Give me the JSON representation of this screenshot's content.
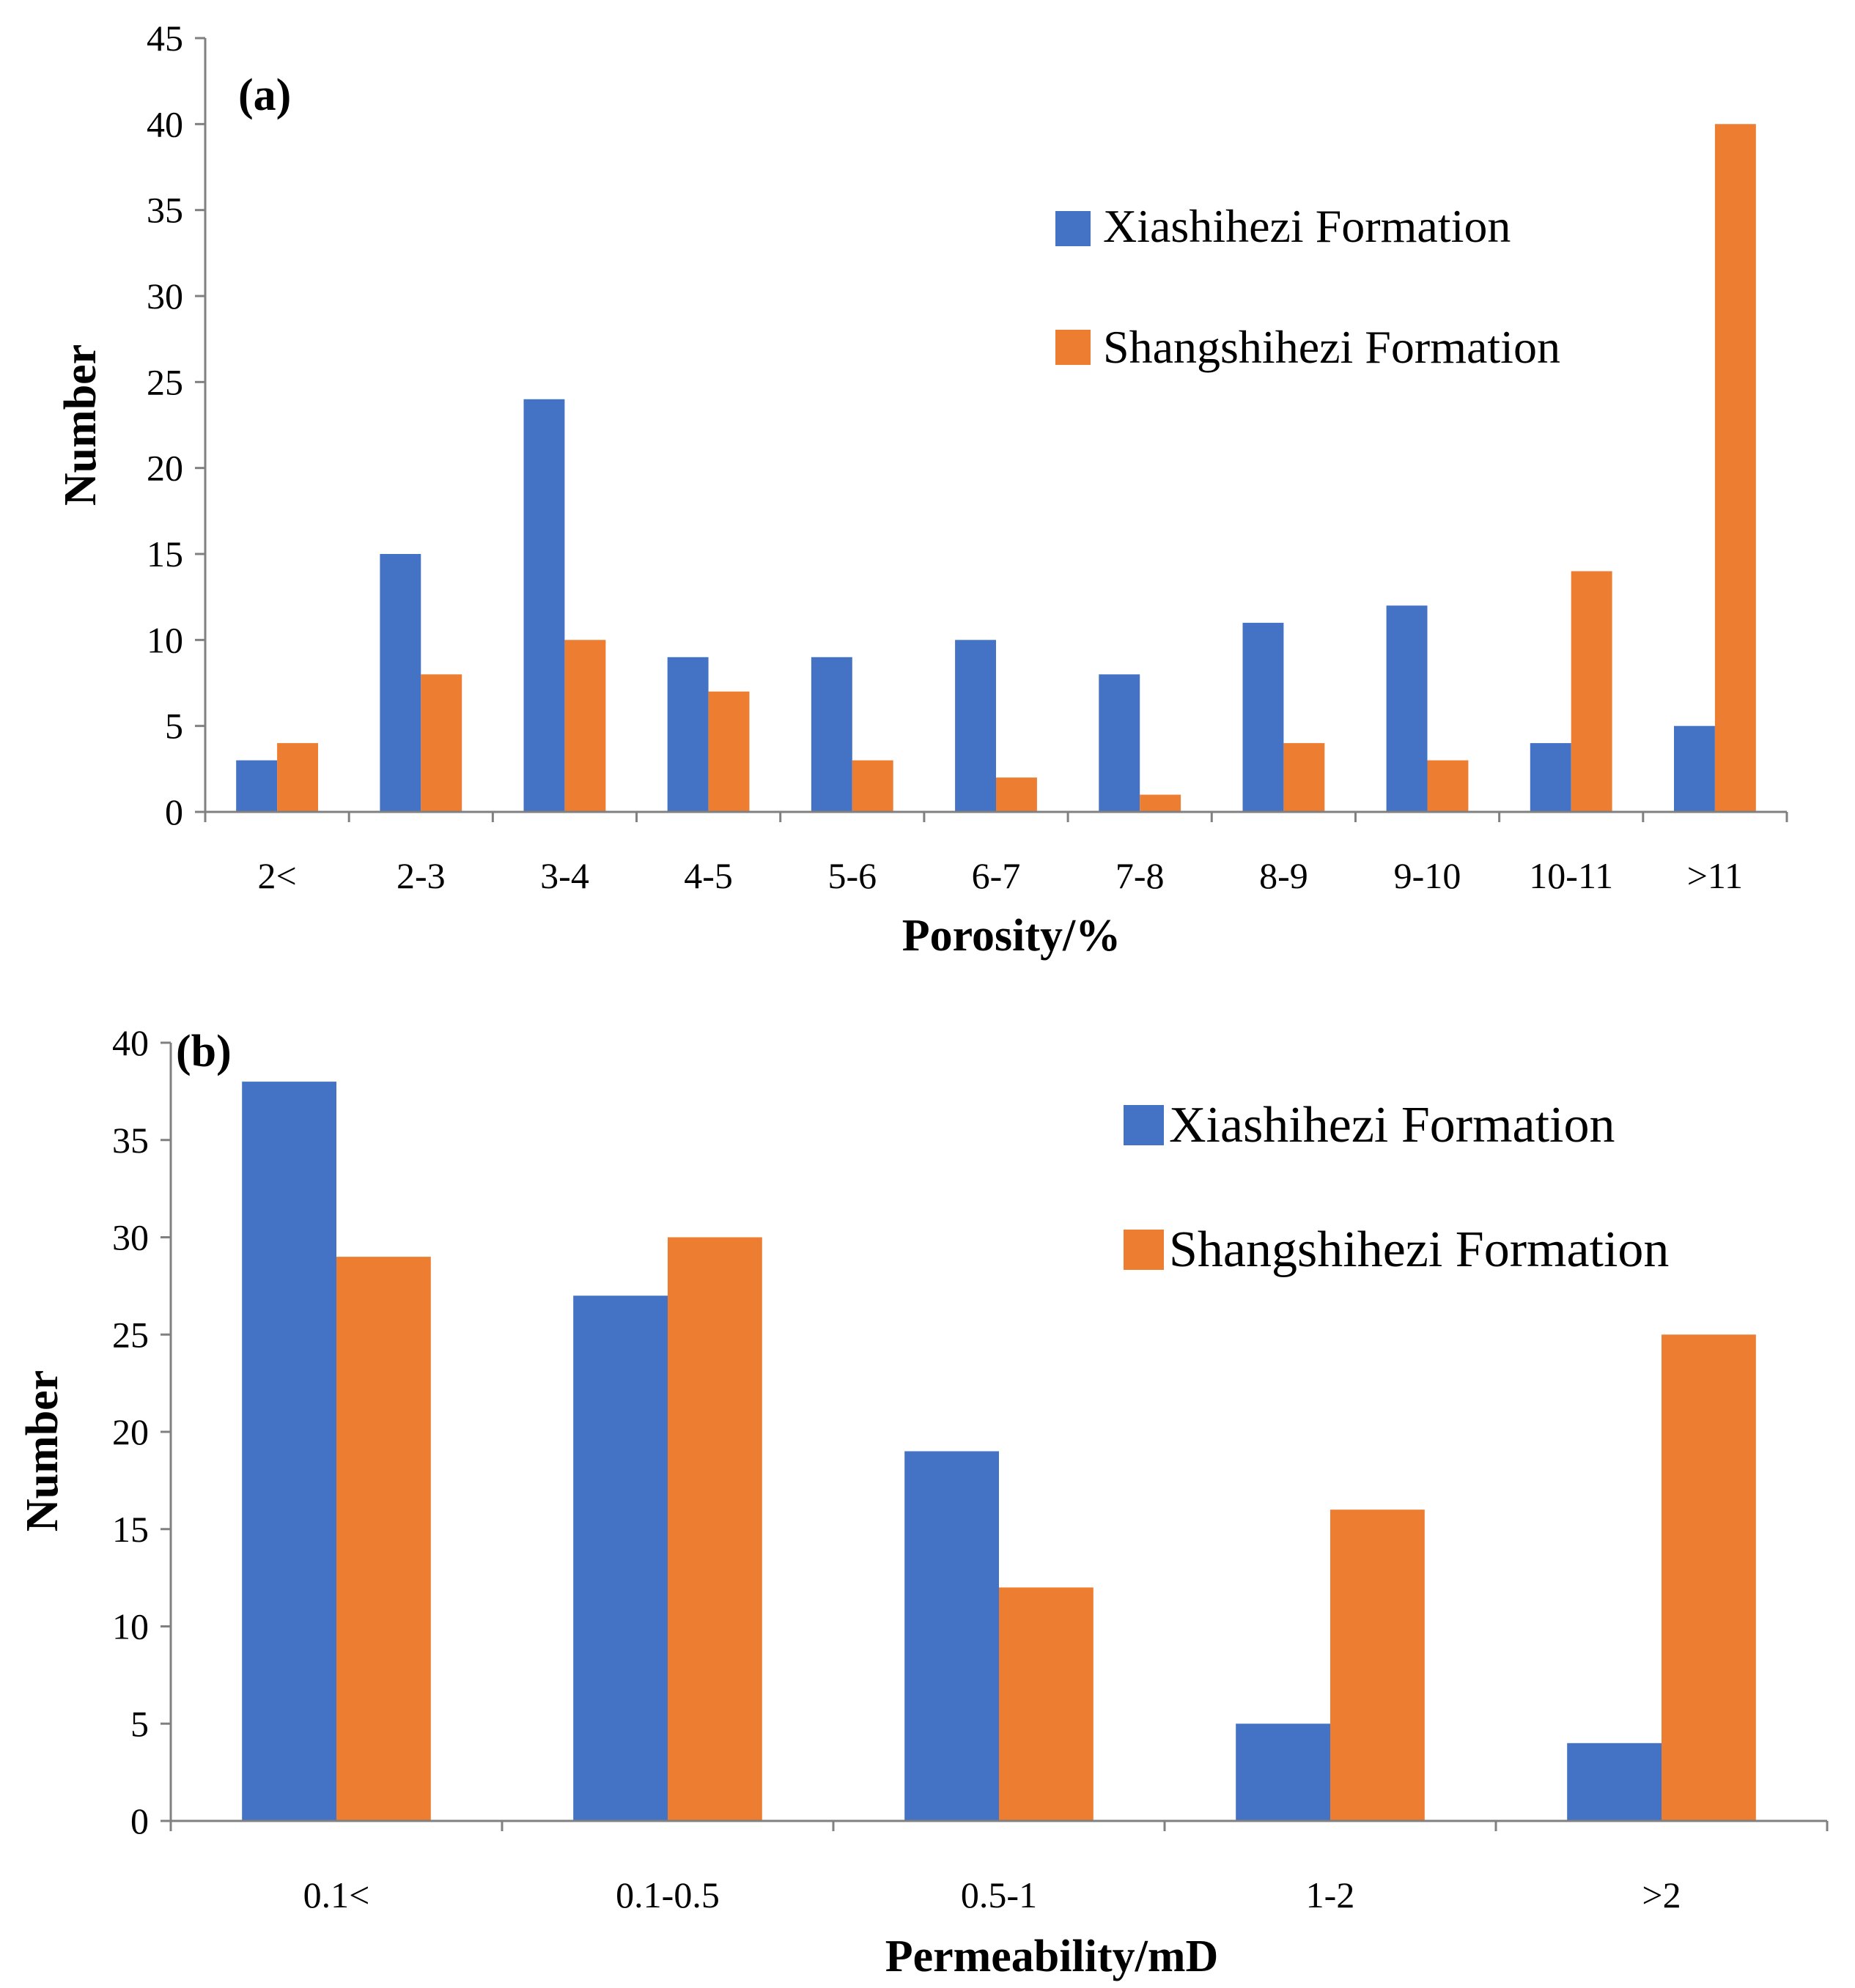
{
  "colors": {
    "xiashihezi": "#4472C4",
    "shangshihezi": "#ED7D31",
    "axis": "#808080"
  },
  "chart_data": [
    {
      "type": "bar",
      "panel_label": "(a)",
      "title": "",
      "xlabel": "Porosity/%",
      "ylabel": "Number",
      "categories": [
        "2<",
        "2-3",
        "3-4",
        "4-5",
        "5-6",
        "6-7",
        "7-8",
        "8-9",
        "9-10",
        "10-11",
        ">11"
      ],
      "series": [
        {
          "name": "Xiashihezi Formation",
          "color": "#4472C4",
          "values": [
            3,
            15,
            24,
            9,
            9,
            10,
            8,
            11,
            12,
            4,
            5
          ]
        },
        {
          "name": "Shangshihezi Formation",
          "color": "#ED7D31",
          "values": [
            4,
            8,
            10,
            7,
            3,
            2,
            1,
            4,
            3,
            14,
            40
          ]
        }
      ],
      "ylim": [
        0,
        45
      ],
      "yticks": [
        0,
        5,
        10,
        15,
        20,
        25,
        30,
        35,
        40,
        45
      ],
      "grid": false,
      "legend": "top-right"
    },
    {
      "type": "bar",
      "panel_label": "(b)",
      "title": "",
      "xlabel": "Permeability/mD",
      "ylabel": "Number",
      "categories": [
        "0.1<",
        "0.1-0.5",
        "0.5-1",
        "1-2",
        ">2"
      ],
      "series": [
        {
          "name": "Xiashihezi Formation",
          "color": "#4472C4",
          "values": [
            38,
            27,
            19,
            5,
            4
          ]
        },
        {
          "name": "Shangshihezi Formation",
          "color": "#ED7D31",
          "values": [
            29,
            30,
            12,
            16,
            25
          ]
        }
      ],
      "ylim": [
        0,
        40
      ],
      "yticks": [
        0,
        5,
        10,
        15,
        20,
        25,
        30,
        35,
        40
      ],
      "grid": false,
      "legend": "top-right"
    }
  ]
}
